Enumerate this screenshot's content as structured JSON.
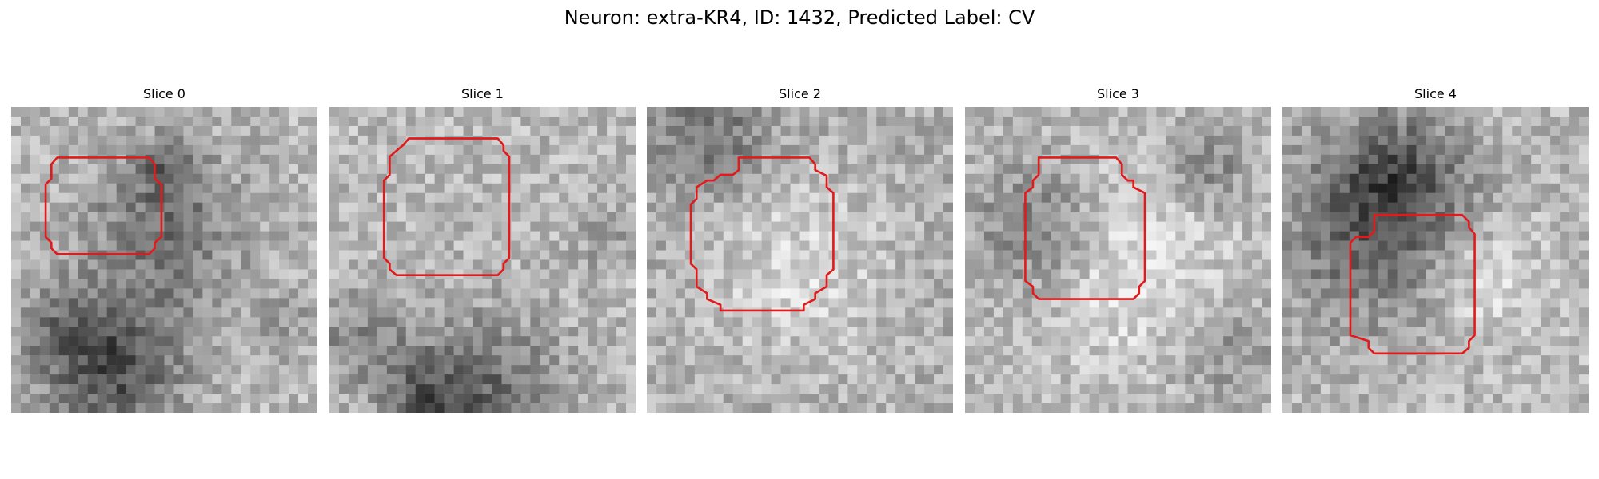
{
  "title": "Neuron: extra-KR4, ID: 1432, Predicted Label: CV",
  "outline_color": "#e31a1c",
  "panels": [
    {
      "title": "Slice 0",
      "image": {
        "kind": "grayscale-micrograph",
        "grid": 32,
        "ring": "dark ring upper left, dark band bottom",
        "seed": 11,
        "blobs": [
          [
            0.5,
            0.4,
            0.18,
            -70
          ],
          [
            0.33,
            0.85,
            0.16,
            -110
          ],
          [
            0.15,
            0.7,
            0.1,
            -40
          ],
          [
            0.88,
            0.7,
            0.08,
            -30
          ],
          [
            0.5,
            0.2,
            0.07,
            -50
          ]
        ]
      },
      "roi": [
        [
          4.8,
          5.3
        ],
        [
          14.4,
          5.3
        ],
        [
          15.0,
          6.0
        ],
        [
          15.0,
          7.5
        ],
        [
          15.7,
          8.1
        ],
        [
          15.7,
          13.6
        ],
        [
          15.0,
          14.2
        ],
        [
          15.0,
          14.8
        ],
        [
          14.4,
          15.4
        ],
        [
          4.8,
          15.4
        ],
        [
          4.2,
          14.8
        ],
        [
          4.2,
          14.2
        ],
        [
          3.6,
          13.6
        ],
        [
          3.6,
          8.1
        ],
        [
          4.2,
          7.5
        ],
        [
          4.2,
          6.0
        ]
      ]
    },
    {
      "title": "Slice 1",
      "image": {
        "kind": "grayscale-micrograph",
        "grid": 32,
        "ring": "noisy light center",
        "seed": 23,
        "blobs": [
          [
            0.5,
            0.95,
            0.18,
            -80
          ],
          [
            0.1,
            0.75,
            0.1,
            -50
          ],
          [
            0.9,
            0.45,
            0.07,
            -30
          ],
          [
            0.3,
            0.95,
            0.1,
            -60
          ]
        ]
      },
      "roi": [
        [
          8.3,
          3.3
        ],
        [
          17.6,
          3.3
        ],
        [
          18.2,
          4.0
        ],
        [
          18.2,
          4.6
        ],
        [
          18.8,
          5.2
        ],
        [
          18.8,
          15.8
        ],
        [
          18.2,
          16.4
        ],
        [
          18.2,
          17.0
        ],
        [
          17.6,
          17.6
        ],
        [
          7.0,
          17.6
        ],
        [
          6.3,
          17.0
        ],
        [
          6.3,
          16.4
        ],
        [
          5.7,
          15.8
        ],
        [
          5.7,
          7.7
        ],
        [
          6.3,
          7.1
        ],
        [
          6.3,
          5.2
        ],
        [
          7.0,
          4.6
        ],
        [
          7.7,
          4.0
        ]
      ]
    },
    {
      "title": "Slice 2",
      "image": {
        "kind": "grayscale-micrograph",
        "grid": 32,
        "ring": "dark ring around light center",
        "seed": 37,
        "blobs": [
          [
            0.5,
            0.5,
            0.36,
            -90
          ],
          [
            0.5,
            0.52,
            0.28,
            120
          ],
          [
            0.2,
            0.1,
            0.12,
            -60
          ]
        ]
      },
      "roi": [
        [
          9.6,
          5.3
        ],
        [
          17.0,
          5.3
        ],
        [
          17.6,
          6.0
        ],
        [
          17.6,
          6.6
        ],
        [
          18.8,
          7.2
        ],
        [
          18.8,
          8.4
        ],
        [
          19.5,
          9.0
        ],
        [
          19.5,
          17.0
        ],
        [
          18.8,
          17.6
        ],
        [
          18.8,
          18.8
        ],
        [
          17.6,
          19.5
        ],
        [
          17.6,
          20.1
        ],
        [
          16.4,
          20.7
        ],
        [
          16.4,
          21.3
        ],
        [
          7.7,
          21.3
        ],
        [
          7.7,
          20.7
        ],
        [
          6.3,
          20.1
        ],
        [
          6.3,
          19.5
        ],
        [
          5.2,
          18.8
        ],
        [
          5.2,
          17.0
        ],
        [
          4.6,
          16.4
        ],
        [
          4.6,
          10.2
        ],
        [
          5.2,
          9.6
        ],
        [
          5.2,
          8.4
        ],
        [
          6.3,
          7.7
        ],
        [
          7.0,
          7.7
        ],
        [
          7.7,
          7.1
        ],
        [
          9.0,
          7.1
        ],
        [
          9.6,
          6.6
        ]
      ]
    },
    {
      "title": "Slice 3",
      "image": {
        "kind": "grayscale-micrograph",
        "grid": 32,
        "ring": "noisy light center, dark left",
        "seed": 53,
        "blobs": [
          [
            0.25,
            0.4,
            0.16,
            -70
          ],
          [
            0.8,
            0.2,
            0.1,
            -50
          ],
          [
            0.85,
            0.8,
            0.12,
            -40
          ],
          [
            0.5,
            0.5,
            0.22,
            50
          ]
        ]
      },
      "roi": [
        [
          7.7,
          5.3
        ],
        [
          15.8,
          5.3
        ],
        [
          16.4,
          6.0
        ],
        [
          16.4,
          7.1
        ],
        [
          17.0,
          7.7
        ],
        [
          17.6,
          7.7
        ],
        [
          17.6,
          8.4
        ],
        [
          18.8,
          9.0
        ],
        [
          18.8,
          18.2
        ],
        [
          18.2,
          18.8
        ],
        [
          18.2,
          19.5
        ],
        [
          17.6,
          20.1
        ],
        [
          17.0,
          20.1
        ],
        [
          7.7,
          20.1
        ],
        [
          7.1,
          19.5
        ],
        [
          7.1,
          18.8
        ],
        [
          6.3,
          18.2
        ],
        [
          6.3,
          9.0
        ],
        [
          7.1,
          8.4
        ],
        [
          7.1,
          7.7
        ],
        [
          7.7,
          7.1
        ]
      ]
    },
    {
      "title": "Slice 4",
      "image": {
        "kind": "grayscale-micrograph",
        "grid": 32,
        "ring": "dark elongated band upper left",
        "seed": 71,
        "blobs": [
          [
            0.32,
            0.4,
            0.22,
            -90
          ],
          [
            0.38,
            0.22,
            0.14,
            -60
          ],
          [
            0.62,
            0.55,
            0.15,
            45
          ]
        ]
      },
      "roi": [
        [
          9.6,
          11.3
        ],
        [
          18.8,
          11.3
        ],
        [
          19.5,
          12.0
        ],
        [
          19.5,
          12.6
        ],
        [
          20.1,
          13.3
        ],
        [
          20.1,
          23.9
        ],
        [
          19.5,
          24.5
        ],
        [
          19.5,
          25.2
        ],
        [
          18.8,
          25.8
        ],
        [
          9.6,
          25.8
        ],
        [
          9.0,
          25.2
        ],
        [
          9.0,
          24.5
        ],
        [
          7.1,
          23.9
        ],
        [
          7.1,
          14.2
        ],
        [
          7.7,
          13.6
        ],
        [
          9.0,
          13.6
        ],
        [
          9.6,
          13.0
        ]
      ]
    }
  ]
}
